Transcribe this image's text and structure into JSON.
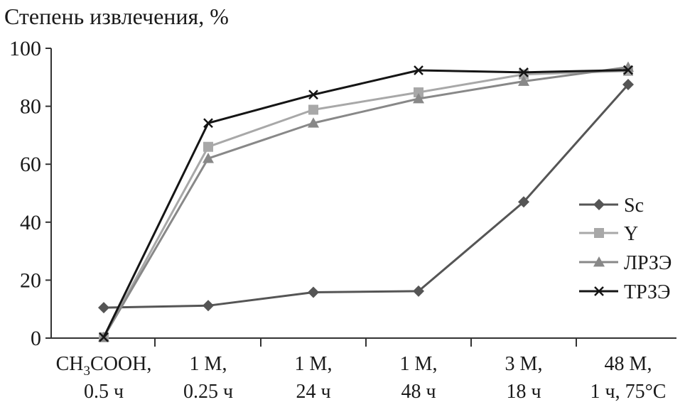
{
  "chart_data": {
    "type": "line",
    "title": "",
    "ylabel": "Степень извлечения, %",
    "xlabel": "",
    "ylim": [
      0,
      100
    ],
    "yticks": [
      0,
      20,
      40,
      60,
      80,
      100
    ],
    "categories": [
      {
        "line1_main": "CH",
        "line1_sub": "3",
        "line1_rest": "COOH,",
        "line2": "0.5 ч"
      },
      {
        "line1_main": "1 M,",
        "line1_sub": "",
        "line1_rest": "",
        "line2": "0.25 ч"
      },
      {
        "line1_main": "1 M,",
        "line1_sub": "",
        "line1_rest": "",
        "line2": "24 ч"
      },
      {
        "line1_main": "1 M,",
        "line1_sub": "",
        "line1_rest": "",
        "line2": "48 ч"
      },
      {
        "line1_main": "3 M,",
        "line1_sub": "",
        "line1_rest": "",
        "line2": "18 ч"
      },
      {
        "line1_main": "48 M,",
        "line1_sub": "",
        "line1_rest": "",
        "line2": "1 ч, 75°C"
      }
    ],
    "series": [
      {
        "name": "Sc",
        "marker": "diamond",
        "color": "#555555",
        "values": [
          10.5,
          11.2,
          15.8,
          16.2,
          47.0,
          87.5
        ]
      },
      {
        "name": "Y",
        "marker": "square",
        "color": "#a8a8a8",
        "values": [
          0.3,
          66.0,
          78.8,
          84.8,
          91.0,
          92.2
        ]
      },
      {
        "name": "ЛРЗЭ",
        "marker": "triangle",
        "color": "#888888",
        "values": [
          0.3,
          62.0,
          74.2,
          82.6,
          88.6,
          93.5
        ]
      },
      {
        "name": "ТРЗЭ",
        "marker": "cross",
        "color": "#151515",
        "values": [
          0.3,
          74.2,
          84.0,
          92.4,
          91.7,
          92.5
        ]
      }
    ],
    "grid": false,
    "legend_position": "right"
  }
}
